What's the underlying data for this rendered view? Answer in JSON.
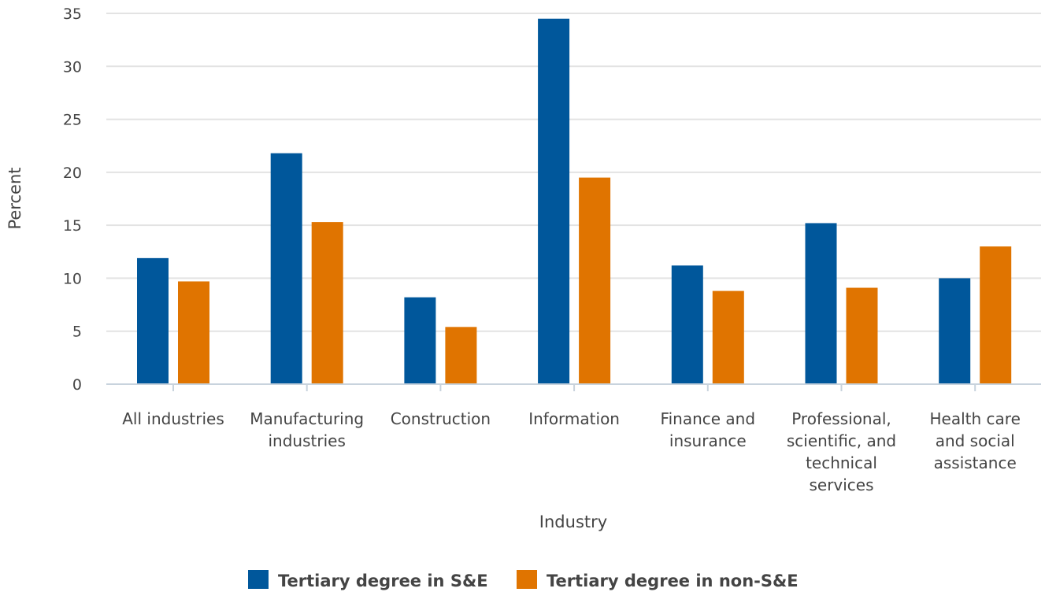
{
  "chart_data": {
    "type": "bar",
    "title": "",
    "xlabel": "Industry",
    "ylabel": "Percent",
    "ylim": [
      0,
      35
    ],
    "yticks": [
      0,
      5,
      10,
      15,
      20,
      25,
      30,
      35
    ],
    "grid": true,
    "legend_position": "bottom",
    "categories": [
      [
        "All industries"
      ],
      [
        "Manufacturing",
        "industries"
      ],
      [
        "Construction"
      ],
      [
        "Information"
      ],
      [
        "Finance and",
        "insurance"
      ],
      [
        "Professional,",
        "scientific, and",
        "technical",
        "services"
      ],
      [
        "Health care",
        "and social",
        "assistance"
      ]
    ],
    "series": [
      {
        "name": "Tertiary degree in S&E",
        "color": "#00579b",
        "values": [
          11.9,
          21.8,
          8.2,
          34.5,
          11.2,
          15.2,
          10.0
        ]
      },
      {
        "name": "Tertiary degree in non-S&E",
        "color": "#e07400",
        "values": [
          9.7,
          15.3,
          5.4,
          19.5,
          8.8,
          9.1,
          13.0
        ]
      }
    ]
  }
}
